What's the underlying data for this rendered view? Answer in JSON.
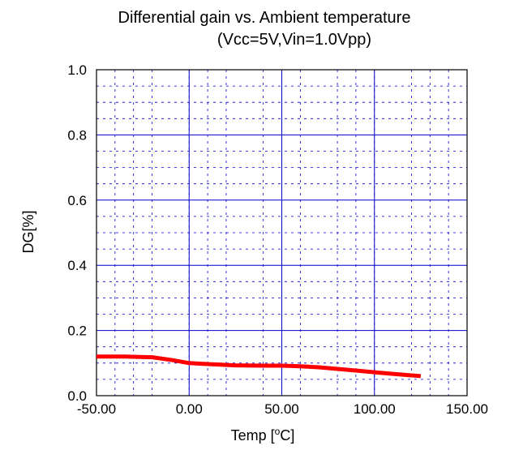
{
  "chart_data": {
    "type": "line",
    "title": "Differential gain vs. Ambient temperature",
    "subtitle": "(Vcc=5V,Vin=1.0Vpp)",
    "xlabel_prefix": "Temp [",
    "xlabel_sup": "o",
    "xlabel_suffix": "C]",
    "ylabel": "DG[%]",
    "xlim": [
      -50,
      150
    ],
    "ylim": [
      0,
      1.0
    ],
    "x_ticks": [
      -50,
      0,
      50,
      100,
      150
    ],
    "x_tick_labels": [
      "-50.00",
      "0.00",
      "50.00",
      "100.00",
      "150.00"
    ],
    "y_ticks": [
      0,
      0.2,
      0.4,
      0.6,
      0.8,
      1.0
    ],
    "y_tick_labels": [
      "0.0",
      "0.2",
      "0.4",
      "0.6",
      "0.8",
      "1.0"
    ],
    "grid": true,
    "series": [
      {
        "color": "#ff0000",
        "x": [
          -50,
          -35,
          -20,
          -10,
          0,
          10,
          25,
          40,
          50,
          60,
          70,
          80,
          90,
          100,
          110,
          125
        ],
        "y": [
          0.12,
          0.12,
          0.118,
          0.11,
          0.1,
          0.097,
          0.093,
          0.092,
          0.092,
          0.09,
          0.087,
          0.082,
          0.077,
          0.072,
          0.067,
          0.06
        ]
      }
    ],
    "colors": {
      "major_grid": "#0000cc",
      "minor_grid": "#0000cc",
      "axis": "#000000"
    }
  }
}
